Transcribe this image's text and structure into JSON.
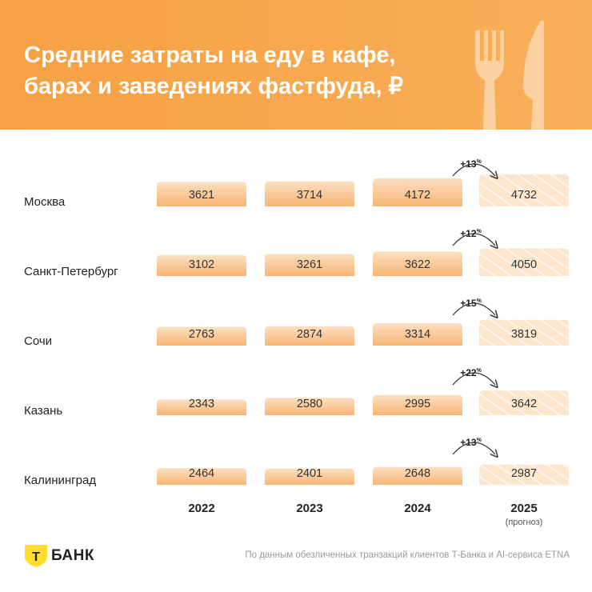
{
  "title_line1": "Средние затраты на еду в кафе,",
  "title_line2": "барах и заведениях фастфуда, ₽",
  "brand": {
    "logo_letter": "Т",
    "logo_text": "БАНК",
    "accent": "#f7a64a",
    "shield": "#ffdd2d"
  },
  "source": "По данным обезличенных транзакций клиентов Т-Банка и AI-сервиса ETNA",
  "chart_data": {
    "type": "bar",
    "categories": [
      "Москва",
      "Санкт-Петербург",
      "Сочи",
      "Казань",
      "Калининград"
    ],
    "years": [
      "2022",
      "2023",
      "2024",
      "2025"
    ],
    "forecast_note": "(прогноз)",
    "series": [
      {
        "name": "2022",
        "values": [
          3621,
          3102,
          2763,
          2343,
          2464
        ]
      },
      {
        "name": "2023",
        "values": [
          3714,
          3261,
          2874,
          2580,
          2401
        ]
      },
      {
        "name": "2024",
        "values": [
          4172,
          3622,
          3314,
          2995,
          2648
        ]
      },
      {
        "name": "2025",
        "values": [
          4732,
          4050,
          3819,
          3642,
          2987
        ]
      }
    ],
    "growth_labels": [
      "+13%",
      "+12%",
      "+15%",
      "+22%",
      "+13%"
    ],
    "colors": {
      "bar_top": "#fce0c2",
      "bar_bottom": "#f7b574",
      "forecast": "#fde6cc",
      "hatch": "#fff6ec"
    }
  }
}
